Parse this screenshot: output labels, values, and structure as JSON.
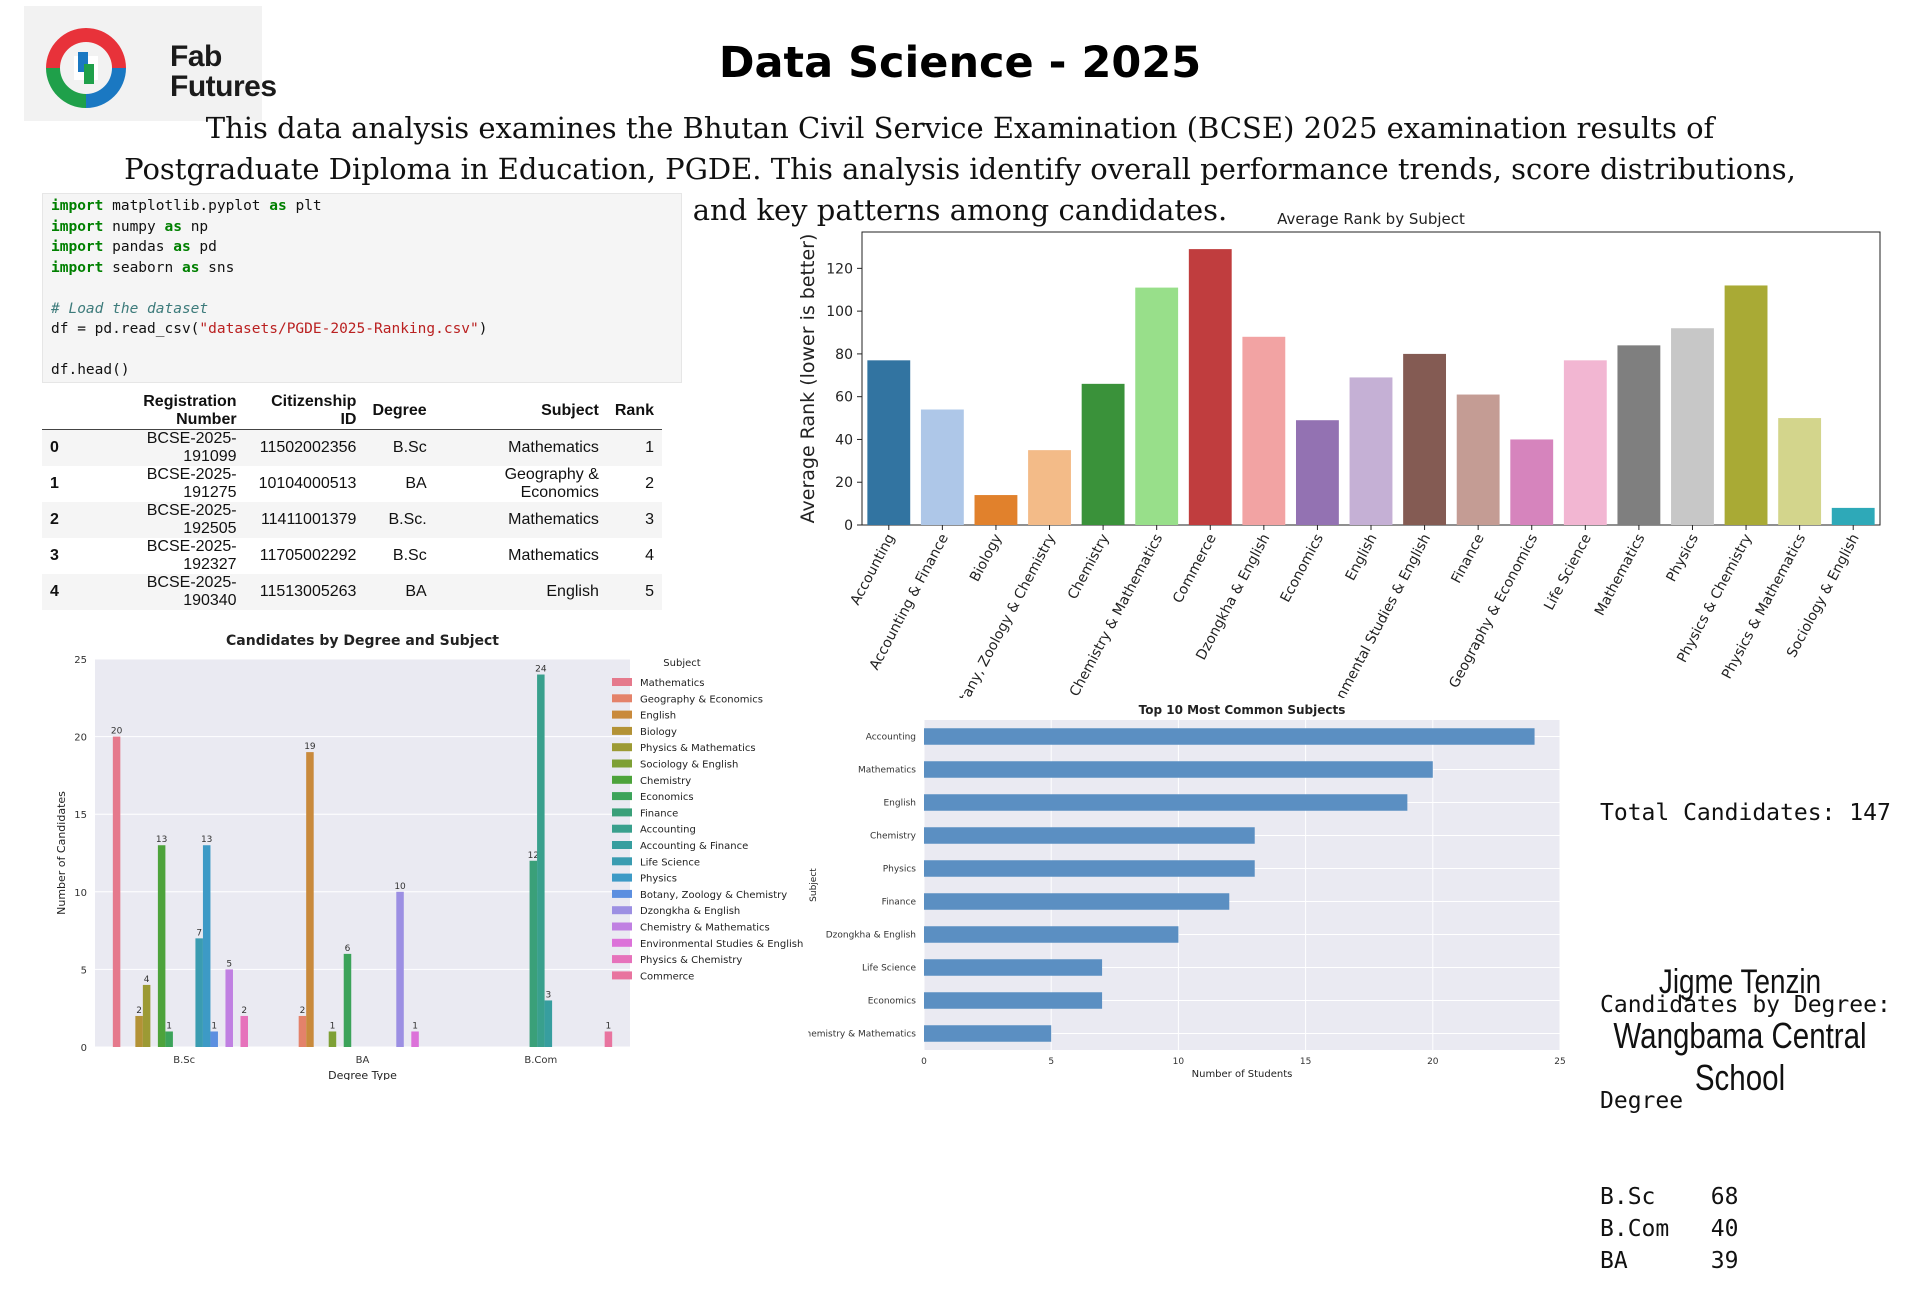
{
  "logo": {
    "line1": "Fab",
    "line2": "Futures"
  },
  "title": "Data Science - 2025",
  "intro": "This data analysis examines the Bhutan Civil Service Examination (BCSE) 2025 examination results of Postgraduate Diploma in Education, PGDE. This analysis  identify overall performance trends, score distributions, and key patterns among candidates.",
  "code": {
    "lines": [
      [
        [
          "kw",
          "import"
        ],
        [
          "nm",
          " matplotlib.pyplot "
        ],
        [
          "kw",
          "as"
        ],
        [
          "nm",
          " plt"
        ]
      ],
      [
        [
          "kw",
          "import"
        ],
        [
          "nm",
          " numpy "
        ],
        [
          "kw",
          "as"
        ],
        [
          "nm",
          " np"
        ]
      ],
      [
        [
          "kw",
          "import"
        ],
        [
          "nm",
          " pandas "
        ],
        [
          "kw",
          "as"
        ],
        [
          "nm",
          " pd"
        ]
      ],
      [
        [
          "kw",
          "import"
        ],
        [
          "nm",
          " seaborn "
        ],
        [
          "kw",
          "as"
        ],
        [
          "nm",
          " sns"
        ]
      ],
      [],
      [
        [
          "cm",
          "# Load the dataset"
        ]
      ],
      [
        [
          "nm",
          "df = pd.read_csv("
        ],
        [
          "st",
          "\"datasets/PGDE-2025-Ranking.csv\""
        ],
        [
          "nm",
          ")"
        ]
      ],
      [],
      [
        [
          "nm",
          "df.head()"
        ]
      ]
    ]
  },
  "table": {
    "columns": [
      "",
      "Registration Number",
      "Citizenship ID",
      "Degree",
      "Subject",
      "Rank"
    ],
    "rows": [
      [
        "0",
        "BCSE-2025-191099",
        "11502002356",
        "B.Sc",
        "Mathematics",
        "1"
      ],
      [
        "1",
        "BCSE-2025-191275",
        "10104000513",
        "BA",
        "Geography & Economics",
        "2"
      ],
      [
        "2",
        "BCSE-2025-192505",
        "11411001379",
        "B.Sc.",
        "Mathematics",
        "3"
      ],
      [
        "3",
        "BCSE-2025-192327",
        "11705002292",
        "B.Sc",
        "Mathematics",
        "4"
      ],
      [
        "4",
        "BCSE-2025-190340",
        "11513005263",
        "BA",
        "English",
        "5"
      ]
    ]
  },
  "chart_data": [
    {
      "type": "bar",
      "title": "Average Rank by Subject",
      "xlabel": "",
      "ylabel": "Average Rank (lower is better)",
      "ylim": [
        0,
        137
      ],
      "yticks": [
        0,
        20,
        40,
        60,
        80,
        100,
        120
      ],
      "categories": [
        "Accounting",
        "Accounting & Finance",
        "Biology",
        "Botany, Zoology & Chemistry",
        "Chemistry",
        "Chemistry & Mathematics",
        "Commerce",
        "Dzongkha & English",
        "Economics",
        "English",
        "Environmental Studies & English",
        "Finance",
        "Geography & Economics",
        "Life Science",
        "Mathematics",
        "Physics",
        "Physics & Chemistry",
        "Physics & Mathematics",
        "Sociology & English"
      ],
      "tick_labels": [
        "Accounting",
        "Accounting & Finance",
        "Biology",
        "tany, Zoology & Chemistry",
        "Chemistry",
        "Chemistry & Mathematics",
        "Commerce",
        "Dzongkha & English",
        "Economics",
        "English",
        "onmental Studies & English",
        "Finance",
        "Geography & Economics",
        "Life Science",
        "Mathematics",
        "Physics",
        "Physics & Chemistry",
        "Physics & Mathematics",
        "Sociology & English"
      ],
      "values": [
        77,
        54,
        14,
        35,
        66,
        111,
        129,
        88,
        49,
        69,
        80,
        61,
        40,
        77,
        84,
        92,
        112,
        50,
        8
      ],
      "colors": [
        "#3274a1",
        "#aec7e8",
        "#e1812c",
        "#f3bb88",
        "#3a923a",
        "#98df8a",
        "#c03d3e",
        "#f2a3a3",
        "#9372b2",
        "#c5b0d5",
        "#845b53",
        "#c49c94",
        "#d684bd",
        "#f2b6d2",
        "#7f7f7f",
        "#c7c7c7",
        "#a9aa35",
        "#d3d58c",
        "#2ea9b8"
      ]
    },
    {
      "type": "bar",
      "title": "Candidates by Degree and Subject",
      "xlabel": "Degree Type",
      "ylabel": "Number of Candidates",
      "ylim": [
        0,
        25
      ],
      "yticks": [
        0,
        5,
        10,
        15,
        20,
        25
      ],
      "categories": [
        "B.Sc",
        "BA",
        "B.Com"
      ],
      "legend_title": "Subject",
      "series": [
        {
          "name": "Mathematics",
          "color": "#e5798c",
          "values": [
            20,
            null,
            null
          ]
        },
        {
          "name": "Geography & Economics",
          "color": "#e4826a",
          "values": [
            null,
            2,
            null
          ]
        },
        {
          "name": "English",
          "color": "#c98a3c",
          "values": [
            null,
            19,
            null
          ]
        },
        {
          "name": "Biology",
          "color": "#b39236",
          "values": [
            2,
            null,
            null
          ]
        },
        {
          "name": "Physics & Mathematics",
          "color": "#9c9a34",
          "values": [
            4,
            null,
            null
          ]
        },
        {
          "name": "Sociology & English",
          "color": "#7ea035",
          "values": [
            null,
            1,
            null
          ]
        },
        {
          "name": "Chemistry",
          "color": "#4da33b",
          "values": [
            13,
            null,
            null
          ]
        },
        {
          "name": "Economics",
          "color": "#3ca35a",
          "values": [
            1,
            6,
            null
          ]
        },
        {
          "name": "Finance",
          "color": "#3aa079",
          "values": [
            null,
            null,
            12
          ]
        },
        {
          "name": "Accounting",
          "color": "#39a08d",
          "values": [
            null,
            null,
            24
          ]
        },
        {
          "name": "Accounting & Finance",
          "color": "#379e9f",
          "values": [
            null,
            null,
            3
          ]
        },
        {
          "name": "Life Science",
          "color": "#3a9cb1",
          "values": [
            7,
            null,
            null
          ]
        },
        {
          "name": "Physics",
          "color": "#3d9ac6",
          "values": [
            13,
            null,
            null
          ]
        },
        {
          "name": "Botany, Zoology & Chemistry",
          "color": "#5c8fe0",
          "values": [
            1,
            null,
            null
          ]
        },
        {
          "name": "Dzongkha & English",
          "color": "#9c8fe3",
          "values": [
            null,
            10,
            null
          ]
        },
        {
          "name": "Chemistry & Mathematics",
          "color": "#c080e2",
          "values": [
            5,
            null,
            null
          ]
        },
        {
          "name": "Environmental Studies & English",
          "color": "#dc72d9",
          "values": [
            null,
            1,
            null
          ]
        },
        {
          "name": "Physics & Chemistry",
          "color": "#e672bb",
          "values": [
            2,
            null,
            null
          ]
        },
        {
          "name": "Commerce",
          "color": "#e8749f",
          "values": [
            null,
            null,
            1
          ]
        }
      ]
    },
    {
      "type": "bar",
      "orientation": "horizontal",
      "title": "Top 10 Most Common Subjects",
      "xlabel": "Number of Students",
      "ylabel": "Subject",
      "xlim": [
        0,
        25
      ],
      "xticks": [
        0,
        5,
        10,
        15,
        20,
        25
      ],
      "categories": [
        "Accounting",
        "Mathematics",
        "English",
        "Chemistry",
        "Physics",
        "Finance",
        "Dzongkha & English",
        "Life Science",
        "Economics",
        "Chemistry & Mathematics"
      ],
      "values": [
        24,
        20,
        19,
        13,
        13,
        12,
        10,
        7,
        7,
        5
      ],
      "color": "#5b8fc2"
    }
  ],
  "summary": {
    "total": "Total Candidates: 147",
    "heading": "Candidates by Degree:",
    "col": "Degree",
    "rows": [
      [
        "B.Sc",
        "68"
      ],
      [
        "B.Com",
        "40"
      ],
      [
        "BA",
        "39"
      ]
    ]
  },
  "author": "Jigme Tenzin",
  "school": "Wangbama Central School"
}
